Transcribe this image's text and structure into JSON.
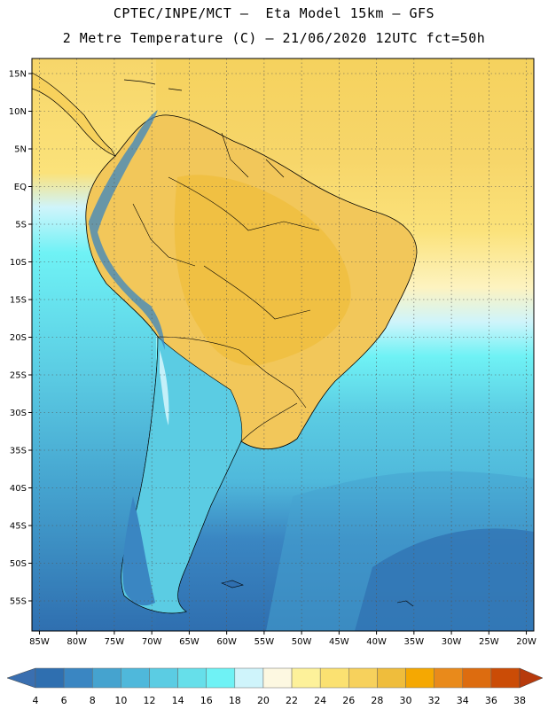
{
  "header": {
    "line1": "CPTEC/INPE/MCT –  Eta Model 15km – GFS",
    "line2": "2 Metre Temperature (C) – 21/06/2020 12UTC fct=50h"
  },
  "map": {
    "lon_min": -86,
    "lon_max": -19,
    "lat_min": -59,
    "lat_max": 17,
    "lat_ticks": [
      {
        "value": 15,
        "label": "15N"
      },
      {
        "value": 10,
        "label": "10N"
      },
      {
        "value": 5,
        "label": "5N"
      },
      {
        "value": 0,
        "label": "EQ"
      },
      {
        "value": -5,
        "label": "5S"
      },
      {
        "value": -10,
        "label": "10S"
      },
      {
        "value": -15,
        "label": "15S"
      },
      {
        "value": -20,
        "label": "20S"
      },
      {
        "value": -25,
        "label": "25S"
      },
      {
        "value": -30,
        "label": "30S"
      },
      {
        "value": -35,
        "label": "35S"
      },
      {
        "value": -40,
        "label": "40S"
      },
      {
        "value": -45,
        "label": "45S"
      },
      {
        "value": -50,
        "label": "50S"
      },
      {
        "value": -55,
        "label": "55S"
      }
    ],
    "lon_ticks": [
      {
        "value": -85,
        "label": "85W"
      },
      {
        "value": -80,
        "label": "80W"
      },
      {
        "value": -75,
        "label": "75W"
      },
      {
        "value": -70,
        "label": "70W"
      },
      {
        "value": -65,
        "label": "65W"
      },
      {
        "value": -60,
        "label": "60W"
      },
      {
        "value": -55,
        "label": "55W"
      },
      {
        "value": -50,
        "label": "50W"
      },
      {
        "value": -45,
        "label": "45W"
      },
      {
        "value": -40,
        "label": "40W"
      },
      {
        "value": -35,
        "label": "35W"
      },
      {
        "value": -30,
        "label": "30W"
      },
      {
        "value": -25,
        "label": "25W"
      },
      {
        "value": -20,
        "label": "20W"
      }
    ]
  },
  "legend": {
    "labels": [
      "4",
      "6",
      "8",
      "10",
      "12",
      "14",
      "16",
      "18",
      "20",
      "22",
      "24",
      "26",
      "28",
      "30",
      "32",
      "34",
      "36",
      "38"
    ],
    "under_color": "#3a6fb0",
    "over_color": "#b73a0c",
    "colors": [
      "#2f6fb0",
      "#3a86c2",
      "#45a3cf",
      "#4fb8db",
      "#5bcce3",
      "#66dfea",
      "#6ff2f5",
      "#cff4fb",
      "#fdf8e1",
      "#fdf19a",
      "#fbe171",
      "#f7d15c",
      "#efbd3c",
      "#f5a802",
      "#e98a1b",
      "#dd6c0f",
      "#cb4c06"
    ]
  }
}
